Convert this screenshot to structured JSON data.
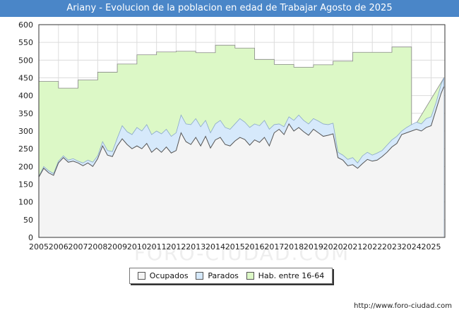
{
  "title": "Ariany - Evolucion de la poblacion en edad de Trabajar Agosto de 2025",
  "source": "http://www.foro-ciudad.com",
  "watermark": "FORO-CIUDAD.COM",
  "colors": {
    "title_bg": "#4a86c8",
    "ocupados": "#f4f4f4",
    "parados": "#d6e9fb",
    "hab": "#dcf8c6"
  },
  "chart_data": {
    "type": "area",
    "title": "Ariany - Evolucion de la poblacion en edad de Trabajar Agosto de 2025",
    "xlabel": "",
    "ylabel": "",
    "xlim": [
      2005,
      2025.7
    ],
    "ylim": [
      0,
      600
    ],
    "grid": true,
    "legend_position": "bottom-center",
    "x_ticks": [
      "2005",
      "2006",
      "2007",
      "2008",
      "2009",
      "2010",
      "2011",
      "2012",
      "2013",
      "2014",
      "2015",
      "2016",
      "2017",
      "2018",
      "2019",
      "2020",
      "2021",
      "2022",
      "2023",
      "2024",
      "2025"
    ],
    "y_ticks": [
      0,
      50,
      100,
      150,
      200,
      250,
      300,
      350,
      400,
      450,
      500,
      550,
      600
    ],
    "legend": [
      "Ocupados",
      "Parados",
      "Hab. entre 16-64"
    ],
    "hab_entre_16_64": [
      {
        "year": 2005,
        "value": 440
      },
      {
        "year": 2006,
        "value": 421
      },
      {
        "year": 2007,
        "value": 444
      },
      {
        "year": 2008,
        "value": 466
      },
      {
        "year": 2009,
        "value": 489
      },
      {
        "year": 2010,
        "value": 515
      },
      {
        "year": 2011,
        "value": 523
      },
      {
        "year": 2012,
        "value": 525
      },
      {
        "year": 2013,
        "value": 521
      },
      {
        "year": 2014,
        "value": 542
      },
      {
        "year": 2015,
        "value": 534
      },
      {
        "year": 2016,
        "value": 502
      },
      {
        "year": 2017,
        "value": 488
      },
      {
        "year": 2018,
        "value": 480
      },
      {
        "year": 2019,
        "value": 487
      },
      {
        "year": 2020,
        "value": 497
      },
      {
        "year": 2021,
        "value": 522
      },
      {
        "year": 2022,
        "value": 522
      },
      {
        "year": 2023,
        "value": 537
      },
      {
        "year": 2024,
        "value": 300
      }
    ],
    "parados_top": {
      "x": [
        2005,
        2005.25,
        2005.5,
        2005.75,
        2006,
        2006.25,
        2006.5,
        2006.75,
        2007,
        2007.25,
        2007.5,
        2007.75,
        2008,
        2008.25,
        2008.5,
        2008.75,
        2009,
        2009.25,
        2009.5,
        2009.75,
        2010,
        2010.25,
        2010.5,
        2010.75,
        2011,
        2011.25,
        2011.5,
        2011.75,
        2012,
        2012.25,
        2012.5,
        2012.75,
        2013,
        2013.25,
        2013.5,
        2013.75,
        2014,
        2014.25,
        2014.5,
        2014.75,
        2015,
        2015.25,
        2015.5,
        2015.75,
        2016,
        2016.25,
        2016.5,
        2016.75,
        2017,
        2017.25,
        2017.5,
        2017.75,
        2018,
        2018.25,
        2018.5,
        2018.75,
        2019,
        2019.25,
        2019.5,
        2019.75,
        2020,
        2020.25,
        2020.5,
        2020.75,
        2021,
        2021.25,
        2021.5,
        2021.75,
        2022,
        2022.25,
        2022.5,
        2022.75,
        2023,
        2023.25,
        2023.5,
        2023.75,
        2024,
        2024.25,
        2024.5,
        2024.75,
        2025,
        2025.25,
        2025.5,
        2025.65
      ],
      "y": [
        172,
        200,
        188,
        180,
        215,
        230,
        218,
        222,
        215,
        210,
        218,
        212,
        230,
        270,
        245,
        242,
        280,
        315,
        298,
        290,
        310,
        300,
        318,
        290,
        300,
        292,
        305,
        285,
        295,
        345,
        320,
        318,
        335,
        312,
        330,
        295,
        320,
        330,
        310,
        305,
        320,
        335,
        325,
        310,
        320,
        315,
        330,
        305,
        318,
        320,
        312,
        340,
        330,
        345,
        330,
        320,
        335,
        328,
        320,
        318,
        322,
        240,
        232,
        220,
        225,
        210,
        230,
        240,
        232,
        238,
        245,
        260,
        275,
        285,
        300,
        310,
        318,
        325,
        320,
        335,
        340,
        380,
        430,
        450
      ]
    },
    "ocupados": {
      "x": [
        2005,
        2005.25,
        2005.5,
        2005.75,
        2006,
        2006.25,
        2006.5,
        2006.75,
        2007,
        2007.25,
        2007.5,
        2007.75,
        2008,
        2008.25,
        2008.5,
        2008.75,
        2009,
        2009.25,
        2009.5,
        2009.75,
        2010,
        2010.25,
        2010.5,
        2010.75,
        2011,
        2011.25,
        2011.5,
        2011.75,
        2012,
        2012.25,
        2012.5,
        2012.75,
        2013,
        2013.25,
        2013.5,
        2013.75,
        2014,
        2014.25,
        2014.5,
        2014.75,
        2015,
        2015.25,
        2015.5,
        2015.75,
        2016,
        2016.25,
        2016.5,
        2016.75,
        2017,
        2017.25,
        2017.5,
        2017.75,
        2018,
        2018.25,
        2018.5,
        2018.75,
        2019,
        2019.25,
        2019.5,
        2019.75,
        2020,
        2020.25,
        2020.5,
        2020.75,
        2021,
        2021.25,
        2021.5,
        2021.75,
        2022,
        2022.25,
        2022.5,
        2022.75,
        2023,
        2023.25,
        2023.5,
        2023.75,
        2024,
        2024.25,
        2024.5,
        2024.75,
        2025,
        2025.25,
        2025.5,
        2025.65
      ],
      "y": [
        170,
        195,
        182,
        175,
        210,
        225,
        212,
        215,
        210,
        202,
        210,
        200,
        222,
        258,
        232,
        228,
        258,
        278,
        262,
        250,
        258,
        250,
        265,
        240,
        252,
        240,
        255,
        238,
        245,
        295,
        270,
        262,
        282,
        258,
        285,
        252,
        275,
        282,
        262,
        258,
        272,
        282,
        276,
        260,
        275,
        268,
        282,
        258,
        295,
        305,
        290,
        320,
        300,
        310,
        298,
        288,
        305,
        295,
        285,
        288,
        292,
        225,
        218,
        202,
        205,
        195,
        208,
        220,
        215,
        218,
        228,
        240,
        255,
        265,
        290,
        295,
        300,
        305,
        300,
        310,
        315,
        360,
        405,
        425
      ]
    }
  }
}
